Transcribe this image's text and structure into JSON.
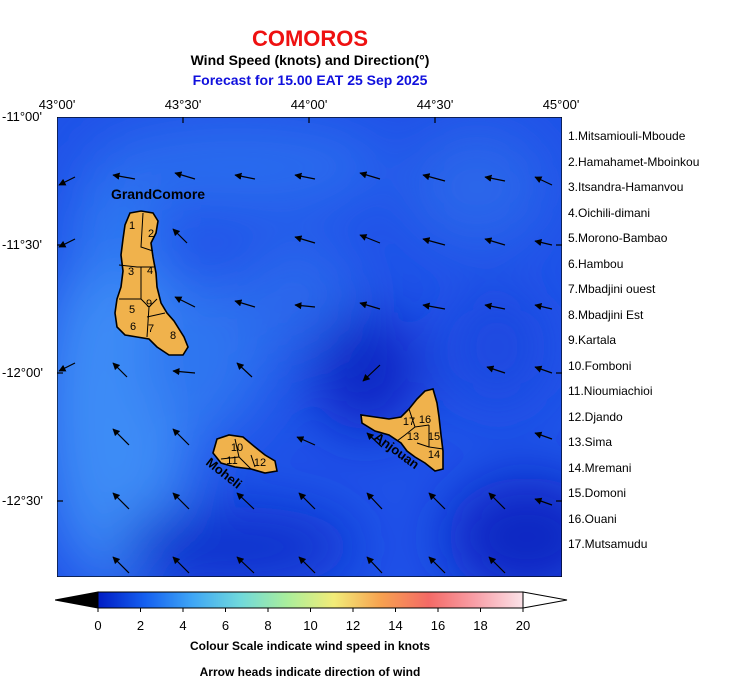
{
  "header": {
    "country": "COMOROS",
    "subtitle": "Wind Speed (knots) and Direction(°)",
    "forecast": "Forecast for  15.00 EAT 25 Sep 2025"
  },
  "axes": {
    "lon_ticks": [
      "43°00'",
      "43°30'",
      "44°00'",
      "44°30'",
      "45°00'"
    ],
    "lat_ticks": [
      "-11°00'",
      "-11°30'",
      "-12°00'",
      "-12°30'"
    ]
  },
  "islands": {
    "grande_comore": "GrandComore",
    "moheli": "Moheli",
    "anjouan": "Anjouan"
  },
  "region_numbers": [
    "1",
    "2",
    "3",
    "4",
    "5",
    "6",
    "7",
    "8",
    "9",
    "10",
    "11",
    "12",
    "13",
    "14",
    "15",
    "16",
    "17"
  ],
  "legend": [
    "1.Mitsamiouli-Mboude",
    "2.Hamahamet-Mboinkou",
    "3.Itsandra-Hamanvou",
    "4.Oichili-dimani",
    "5.Morono-Bambao",
    "6.Hambou",
    "7.Mbadjini ouest",
    "8.Mbadjini Est",
    "9.Kartala",
    "10.Fomboni",
    "11.Nioumiachioi",
    "12.Djando",
    "13.Sima",
    "14.Mremani",
    "15.Domoni",
    "16.Ouani",
    "17.Mutsamudu"
  ],
  "colorbar": {
    "ticks": [
      "0",
      "2",
      "4",
      "6",
      "8",
      "10",
      "12",
      "14",
      "16",
      "18",
      "20"
    ],
    "min": 0,
    "max": 20,
    "colors": [
      "#001cc4",
      "#1560f0",
      "#3fa6f5",
      "#6fd8dc",
      "#a9ee9c",
      "#f2ec78",
      "#f7a150",
      "#f46a66",
      "#f8a0a8",
      "#fbe2e8"
    ]
  },
  "notes": {
    "scale": "Colour Scale indicate wind speed in knots",
    "arrows": "Arrow heads indicate direction of wind"
  },
  "wind": {
    "direction_note": "arrows point west-north-west (wind from east-south-east)",
    "speed_range_knots": [
      2,
      6
    ]
  }
}
